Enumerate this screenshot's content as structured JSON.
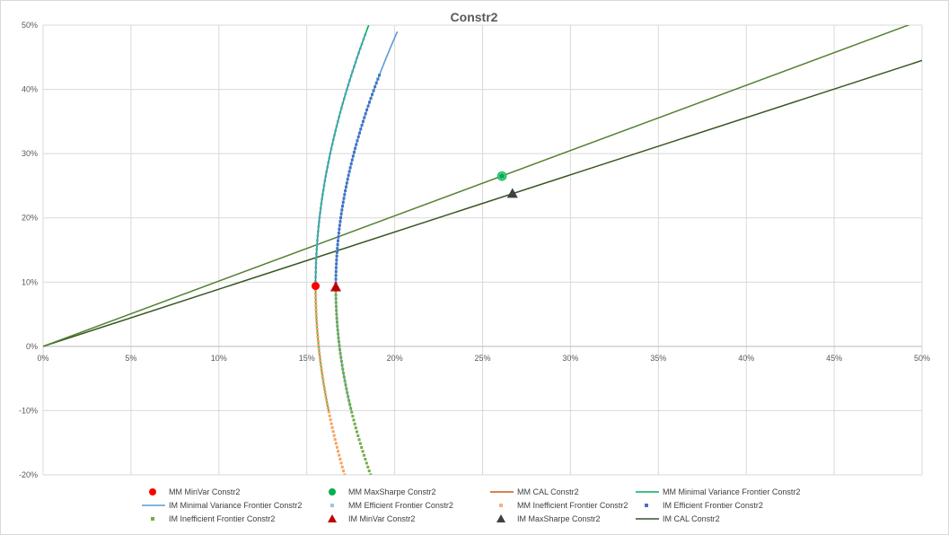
{
  "chart_data": {
    "type": "scatter",
    "title": "Constr2",
    "xlabel": "",
    "ylabel": "",
    "xlim": [
      0,
      0.5
    ],
    "ylim": [
      -0.2,
      0.5
    ],
    "x_ticks": [
      "0%",
      "5%",
      "10%",
      "15%",
      "20%",
      "25%",
      "30%",
      "35%",
      "40%",
      "45%",
      "50%"
    ],
    "y_ticks": [
      "-20%",
      "-10%",
      "0%",
      "10%",
      "20%",
      "30%",
      "40%",
      "50%"
    ],
    "grid": true,
    "legend_position": "bottom",
    "colors": {
      "mm_minvar": "#ff0000",
      "mm_maxsharpe": "#00b050",
      "mm_cal": "#c55a11",
      "mm_frontier": "#00b050",
      "im_frontier": "#5b9bd5",
      "im_efficient": "#4472c4",
      "mm_inefficient": "#f4a460",
      "im_efficient_dots": "#4472c4",
      "im_inefficient": "#70ad47",
      "im_minvar": "#c00000",
      "im_maxsharpe": "#404040",
      "im_cal": "#375623",
      "mm_cal_line": "#548235"
    },
    "mm_frontier": {
      "sigma_min": 0.155,
      "mu_min": 0.094,
      "a": 0.0624
    },
    "im_frontier": {
      "sigma_min": 0.1665,
      "mu_min": 0.0925,
      "a": 0.0816
    },
    "series": [
      {
        "name": "MM MinVar Constr2",
        "kind": "point",
        "marker": "circle",
        "color": "#ff0000",
        "points": [
          [
            0.155,
            0.094
          ]
        ]
      },
      {
        "name": "MM MaxSharpe Constr2",
        "kind": "point",
        "marker": "circle",
        "color": "#00b050",
        "points": [
          [
            0.261,
            0.265
          ]
        ]
      },
      {
        "name": "MM CAL Constr2",
        "kind": "line",
        "color": "#548235",
        "points": [
          [
            0,
            0
          ],
          [
            0.5,
            0.508
          ]
        ]
      },
      {
        "name": "MM Minimal Variance Frontier Constr2",
        "kind": "curve",
        "color": "#00b050",
        "y_range": [
          -0.1,
          0.5
        ]
      },
      {
        "name": "IM Minimal Variance Frontier Constr2",
        "kind": "curve",
        "color": "#5b9bd5",
        "y_range": [
          -0.1,
          0.49
        ]
      },
      {
        "name": "MM Efficient Frontier Constr2",
        "kind": "dots",
        "color": "#5b9bd5",
        "y_range": [
          0.094,
          0.49
        ]
      },
      {
        "name": "MM Inefficient Frontier Constr2",
        "kind": "dots",
        "color": "#f4a460",
        "y_range": [
          -0.2,
          0.094
        ]
      },
      {
        "name": "IM Efficient Frontier Constr2",
        "kind": "dots",
        "color": "#4472c4",
        "y_range": [
          0.0925,
          0.422
        ]
      },
      {
        "name": "IM Inefficient Frontier Constr2",
        "kind": "dots",
        "color": "#70ad47",
        "y_range": [
          -0.2,
          0.0925
        ]
      },
      {
        "name": "IM MinVar Constr2",
        "kind": "point",
        "marker": "triangle",
        "color": "#c00000",
        "points": [
          [
            0.1665,
            0.0925
          ]
        ]
      },
      {
        "name": "IM MaxSharpe Constr2",
        "kind": "point",
        "marker": "triangle",
        "color": "#404040",
        "points": [
          [
            0.267,
            0.238
          ]
        ]
      },
      {
        "name": "IM CAL Constr2",
        "kind": "line",
        "color": "#375623",
        "points": [
          [
            0,
            0
          ],
          [
            0.5,
            0.445
          ]
        ]
      }
    ],
    "legend": [
      {
        "label": "MM MinVar Constr2",
        "marker": "circle",
        "color": "#ff0000"
      },
      {
        "label": "MM MaxSharpe Constr2",
        "marker": "circle",
        "color": "#00b050"
      },
      {
        "label": "MM CAL Constr2",
        "marker": "line",
        "color": "#c55a11"
      },
      {
        "label": "MM Minimal Variance Frontier Constr2",
        "marker": "line",
        "color": "#00b050"
      },
      {
        "label": "IM Minimal Variance Frontier Constr2",
        "marker": "line",
        "color": "#5b9bd5"
      },
      {
        "label": "MM Efficient Frontier Constr2",
        "marker": "square",
        "color": "#9dc3e6"
      },
      {
        "label": "MM Inefficient Frontier Constr2",
        "marker": "square",
        "color": "#f4b183"
      },
      {
        "label": "IM Efficient Frontier Constr2",
        "marker": "square",
        "color": "#4472c4"
      },
      {
        "label": "IM Inefficient Frontier Constr2",
        "marker": "square",
        "color": "#70ad47"
      },
      {
        "label": "IM MinVar Constr2",
        "marker": "triangle",
        "color": "#c00000"
      },
      {
        "label": "IM MaxSharpe Constr2",
        "marker": "triangle",
        "color": "#404040"
      },
      {
        "label": "IM CAL Constr2",
        "marker": "line",
        "color": "#375623"
      }
    ]
  }
}
